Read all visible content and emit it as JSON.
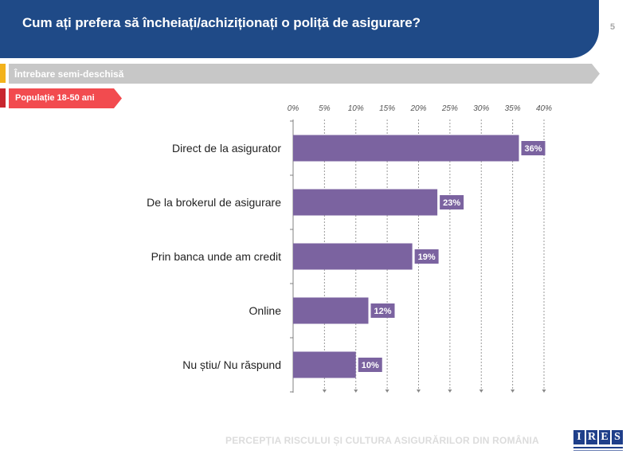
{
  "header": {
    "title": "Cum ați prefera să încheiați/achiziționați o poliță de asigurare?"
  },
  "page_number": "5",
  "tags": {
    "question_type": "Întrebare semi-deschisă",
    "population": "Populație 18-50 ani"
  },
  "footer": {
    "text": "PERCEPȚIA RISCULUI ȘI CULTURA ASIGURĂRILOR DIN ROMÂNIA"
  },
  "logo": {
    "letters": [
      "I",
      "R",
      "E",
      "S"
    ]
  },
  "colors": {
    "header": "#1f4a87",
    "bar": "#7b63a0",
    "grey_banner": "#c7c7c7",
    "red_banner": "#f24b4f",
    "yellow_tag": "#f3b21b",
    "red_tag": "#c8262e"
  },
  "chart_data": {
    "type": "bar",
    "orientation": "horizontal",
    "categories": [
      "Direct de la asigurator",
      "De la brokerul de asigurare",
      "Prin banca unde am credit",
      "Online",
      "Nu știu/ Nu răspund"
    ],
    "values": [
      36,
      23,
      19,
      12,
      10
    ],
    "value_labels": [
      "36%",
      "23%",
      "19%",
      "12%",
      "10%"
    ],
    "xlim": [
      0,
      40
    ],
    "ticks": [
      0,
      5,
      10,
      15,
      20,
      25,
      30,
      35,
      40
    ],
    "tick_labels": [
      "0%",
      "5%",
      "10%",
      "15%",
      "20%",
      "25%",
      "30%",
      "35%",
      "40%"
    ],
    "grid": true,
    "axis_position": "top"
  }
}
